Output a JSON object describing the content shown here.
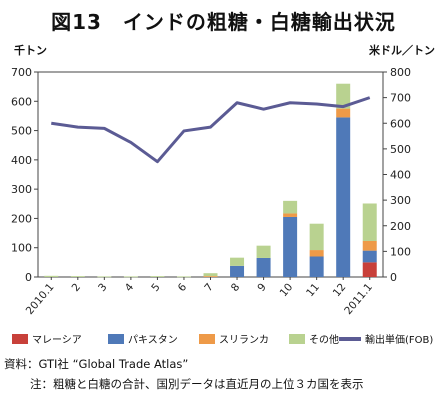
{
  "title": "図13　インドの粗糖・白糖輸出状況",
  "left_unit": "千トン",
  "right_unit": "米ドル／トン",
  "source": "資料：GTI社 “Global Trade Atlas”",
  "note": "注：粗糖と白糖の合計、国別データは直近月の上位３カ国を表示",
  "colors": {
    "malaysia": "#c8403a",
    "pakistan": "#4f79b8",
    "srilanka": "#ee9a48",
    "other": "#b9d290",
    "price": "#5b5b94"
  },
  "chart_data": {
    "type": "bar",
    "stacked": true,
    "categories": [
      "2010.1",
      "2",
      "3",
      "4",
      "5",
      "6",
      "7",
      "8",
      "9",
      "10",
      "11",
      "12",
      "2011.1"
    ],
    "series": [
      {
        "name": "マレーシア",
        "values": [
          0,
          0,
          0,
          0,
          0,
          0,
          0,
          0,
          0,
          0,
          0,
          0,
          50
        ]
      },
      {
        "name": "パキスタン",
        "values": [
          0,
          0,
          0,
          0,
          0,
          0,
          0,
          38,
          65,
          205,
          70,
          545,
          40
        ]
      },
      {
        "name": "スリランカ",
        "values": [
          0,
          0,
          0,
          0,
          0,
          0,
          3,
          0,
          0,
          12,
          22,
          30,
          33
        ]
      },
      {
        "name": "その他",
        "values": [
          4,
          3,
          2,
          2,
          3,
          2,
          10,
          28,
          42,
          43,
          90,
          85,
          128
        ]
      }
    ],
    "line_series": {
      "name": "輸出単価(FOB)",
      "axis": "right",
      "values": [
        600,
        585,
        580,
        525,
        450,
        570,
        585,
        680,
        655,
        680,
        675,
        665,
        700
      ]
    },
    "ylim": [
      0,
      700
    ],
    "yticks": [
      0,
      100,
      200,
      300,
      400,
      500,
      600,
      700
    ],
    "y2lim": [
      0,
      800
    ],
    "y2ticks": [
      0,
      100,
      200,
      300,
      400,
      500,
      600,
      700,
      800
    ],
    "grid": false,
    "legend_position": "bottom"
  }
}
